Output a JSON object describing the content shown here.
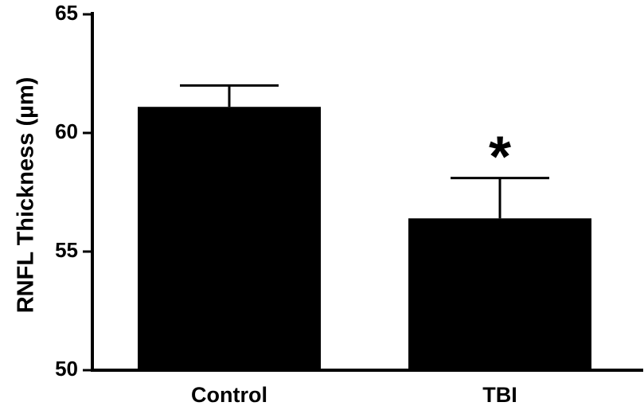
{
  "chart_data": {
    "type": "bar",
    "title": "",
    "xlabel": "",
    "ylabel": "RNFL  Thickness (µm)",
    "ylim": [
      50,
      65
    ],
    "yticks": [
      50,
      55,
      60,
      65
    ],
    "categories": [
      "Control",
      "TBI"
    ],
    "values": [
      61.1,
      56.4
    ],
    "error_upper": [
      0.9,
      1.7
    ],
    "annotations": [
      "",
      "*"
    ],
    "bar_color": "#000000",
    "grid": false,
    "legend": "none"
  }
}
